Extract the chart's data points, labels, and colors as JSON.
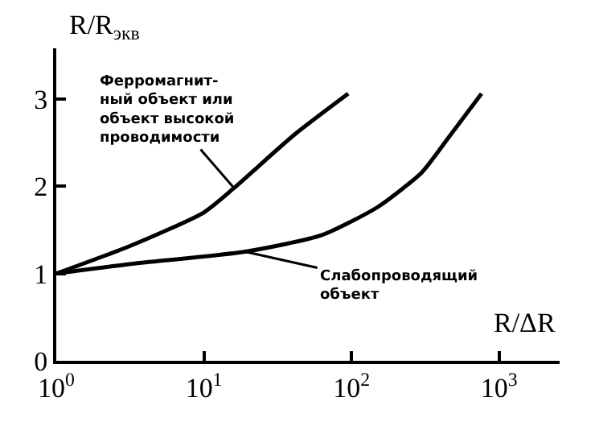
{
  "chart_data": {
    "type": "line",
    "xlabel": "R/ΔR",
    "ylabel": "R/R$_{экв}$",
    "log": "x",
    "xlim": [
      1,
      2570
    ],
    "ylim": [
      0,
      3.58
    ],
    "xticks": [
      {
        "value": 1,
        "label": "10$^{0}$"
      },
      {
        "value": 10,
        "label": "10$^{1}$"
      },
      {
        "value": 100,
        "label": "10$^{2}$"
      },
      {
        "value": 1000,
        "label": "10$^{3}$"
      }
    ],
    "yticks": [
      0,
      1,
      2,
      3
    ],
    "marker": "none",
    "line_style": "solid",
    "series": [
      {
        "color": "#000000",
        "x": [
          1,
          3.2,
          10,
          16,
          41,
          95
        ],
        "values": [
          1,
          1.32,
          1.7,
          1.98,
          2.59,
          3.06
        ]
      },
      {
        "color": "#000000",
        "x": [
          1,
          3.2,
          19,
          63,
          150,
          300,
          460,
          760
        ],
        "values": [
          1,
          1.11,
          1.25,
          1.44,
          1.76,
          2.16,
          2.57,
          3.06
        ]
      }
    ],
    "annotations": [
      {
        "text": "Ферромагнит-\nный объект или\nобъект высокой\nпроводимости",
        "x": 16,
        "y": 1.98
      },
      {
        "text": "Слабопроводящий\nобъект",
        "x": 19,
        "y": 1.25
      }
    ]
  }
}
